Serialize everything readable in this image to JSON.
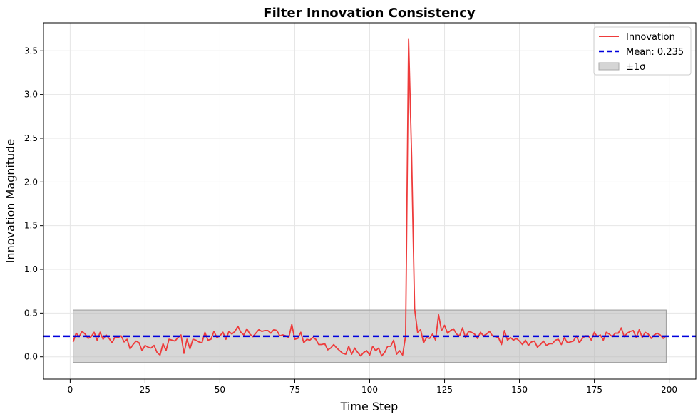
{
  "chart_data": {
    "type": "line",
    "title": "Filter Innovation Consistency",
    "xlabel": "Time Step",
    "ylabel": "Innovation Magnitude",
    "xlim": [
      -8.9,
      208.9
    ],
    "ylim": [
      -0.255,
      3.82
    ],
    "xticks": [
      0,
      25,
      50,
      75,
      100,
      125,
      150,
      175,
      200
    ],
    "yticks": [
      0.0,
      0.5,
      1.0,
      1.5,
      2.0,
      2.5,
      3.0,
      3.5
    ],
    "xtick_labels": [
      "0",
      "25",
      "50",
      "75",
      "100",
      "125",
      "150",
      "175",
      "200"
    ],
    "ytick_labels": [
      "0.0",
      "0.5",
      "1.0",
      "1.5",
      "2.0",
      "2.5",
      "3.0",
      "3.5"
    ],
    "grid": true,
    "legend_position": "top-right",
    "series": [
      {
        "name": "Innovation",
        "color": "#ee3b3b",
        "x": [
          1,
          2,
          3,
          4,
          5,
          6,
          7,
          8,
          9,
          10,
          11,
          12,
          13,
          14,
          15,
          16,
          17,
          18,
          19,
          20,
          21,
          22,
          23,
          24,
          25,
          26,
          27,
          28,
          29,
          30,
          31,
          32,
          33,
          34,
          35,
          36,
          37,
          38,
          39,
          40,
          41,
          42,
          43,
          44,
          45,
          46,
          47,
          48,
          49,
          50,
          51,
          52,
          53,
          54,
          55,
          56,
          57,
          58,
          59,
          60,
          61,
          62,
          63,
          64,
          65,
          66,
          67,
          68,
          69,
          70,
          71,
          72,
          73,
          74,
          75,
          76,
          77,
          78,
          79,
          80,
          81,
          82,
          83,
          84,
          85,
          86,
          87,
          88,
          89,
          90,
          91,
          92,
          93,
          94,
          95,
          96,
          97,
          98,
          99,
          100,
          101,
          102,
          103,
          104,
          105,
          106,
          107,
          108,
          109,
          110,
          111,
          112,
          113,
          114,
          115,
          116,
          117,
          118,
          119,
          120,
          121,
          122,
          123,
          124,
          125,
          126,
          127,
          128,
          129,
          130,
          131,
          132,
          133,
          134,
          135,
          136,
          137,
          138,
          139,
          140,
          141,
          142,
          143,
          144,
          145,
          146,
          147,
          148,
          149,
          150,
          151,
          152,
          153,
          154,
          155,
          156,
          157,
          158,
          159,
          160,
          161,
          162,
          163,
          164,
          165,
          166,
          167,
          168,
          169,
          170,
          171,
          172,
          173,
          174,
          175,
          176,
          177,
          178,
          179,
          180,
          181,
          182,
          183,
          184,
          185,
          186,
          187,
          188,
          189,
          190,
          191,
          192,
          193,
          194,
          195,
          196,
          197,
          198,
          199
        ],
        "values": [
          0.17,
          0.27,
          0.23,
          0.29,
          0.26,
          0.21,
          0.23,
          0.28,
          0.19,
          0.28,
          0.2,
          0.25,
          0.21,
          0.16,
          0.23,
          0.22,
          0.24,
          0.17,
          0.2,
          0.09,
          0.14,
          0.18,
          0.16,
          0.07,
          0.13,
          0.11,
          0.1,
          0.13,
          0.05,
          0.02,
          0.15,
          0.07,
          0.2,
          0.19,
          0.18,
          0.22,
          0.25,
          0.04,
          0.2,
          0.09,
          0.2,
          0.19,
          0.17,
          0.16,
          0.28,
          0.19,
          0.2,
          0.29,
          0.22,
          0.24,
          0.28,
          0.2,
          0.29,
          0.26,
          0.29,
          0.35,
          0.28,
          0.25,
          0.32,
          0.26,
          0.23,
          0.27,
          0.31,
          0.29,
          0.3,
          0.3,
          0.27,
          0.31,
          0.3,
          0.24,
          0.25,
          0.24,
          0.22,
          0.37,
          0.2,
          0.21,
          0.28,
          0.16,
          0.2,
          0.19,
          0.22,
          0.2,
          0.14,
          0.14,
          0.15,
          0.08,
          0.1,
          0.14,
          0.1,
          0.07,
          0.04,
          0.03,
          0.12,
          0.03,
          0.1,
          0.05,
          0.01,
          0.05,
          0.07,
          0.02,
          0.12,
          0.07,
          0.1,
          0.01,
          0.05,
          0.12,
          0.12,
          0.19,
          0.03,
          0.07,
          0.02,
          0.24,
          3.63,
          2.3,
          0.55,
          0.28,
          0.31,
          0.16,
          0.22,
          0.21,
          0.26,
          0.19,
          0.48,
          0.3,
          0.36,
          0.27,
          0.3,
          0.32,
          0.26,
          0.24,
          0.33,
          0.22,
          0.29,
          0.28,
          0.26,
          0.21,
          0.28,
          0.24,
          0.26,
          0.29,
          0.24,
          0.23,
          0.22,
          0.14,
          0.3,
          0.19,
          0.22,
          0.19,
          0.21,
          0.18,
          0.14,
          0.19,
          0.13,
          0.17,
          0.18,
          0.11,
          0.14,
          0.18,
          0.13,
          0.15,
          0.15,
          0.19,
          0.2,
          0.14,
          0.22,
          0.16,
          0.17,
          0.18,
          0.24,
          0.16,
          0.21,
          0.24,
          0.24,
          0.19,
          0.28,
          0.23,
          0.25,
          0.19,
          0.28,
          0.26,
          0.23,
          0.27,
          0.27,
          0.33,
          0.23,
          0.27,
          0.29,
          0.3,
          0.22,
          0.31,
          0.22,
          0.28,
          0.26,
          0.21,
          0.25,
          0.27,
          0.25,
          0.21,
          0.24
        ]
      },
      {
        "name": "Mean: 0.235",
        "color": "#0000dd",
        "value": 0.235
      }
    ],
    "band": {
      "name": "±1σ",
      "x_range": [
        1,
        199
      ],
      "y_range": [
        -0.065,
        0.535
      ],
      "color": "#b0b0b0"
    }
  }
}
